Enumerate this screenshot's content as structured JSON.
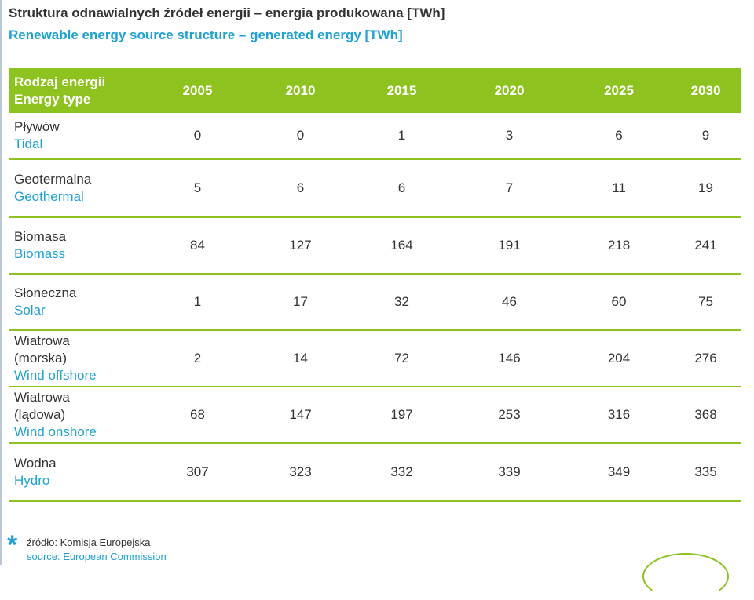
{
  "title_pl": "Struktura odnawialnych źródeł energii – energia produkowana [TWh]",
  "title_en": "Renewable energy source structure – generated energy [TWh]",
  "colors": {
    "header_bg": "#8dc21f",
    "accent_blue": "#1ea1d6"
  },
  "chart_data": {
    "type": "table",
    "header_pl": "Rodzaj energii",
    "header_en": "Energy type",
    "columns": [
      "2005",
      "2010",
      "2015",
      "2020",
      "2025",
      "2030"
    ],
    "rows": [
      {
        "pl": "Pływów",
        "en": "Tidal",
        "values": [
          "0",
          "0",
          "1",
          "3",
          "6",
          "9"
        ]
      },
      {
        "pl": "Geotermalna",
        "en": "Geothermal",
        "values": [
          "5",
          "6",
          "6",
          "7",
          "11",
          "19"
        ]
      },
      {
        "pl": "Biomasa",
        "en": "Biomass",
        "values": [
          "84",
          "127",
          "164",
          "191",
          "218",
          "241"
        ]
      },
      {
        "pl": "Słoneczna",
        "en": "Solar",
        "values": [
          "1",
          "17",
          "32",
          "46",
          "60",
          "75"
        ]
      },
      {
        "pl": "Wiatrowa (morska)",
        "en": "Wind offshore",
        "values": [
          "2",
          "14",
          "72",
          "146",
          "204",
          "276"
        ]
      },
      {
        "pl": "Wiatrowa (lądowa)",
        "en": "Wind onshore",
        "values": [
          "68",
          "147",
          "197",
          "253",
          "316",
          "368"
        ]
      },
      {
        "pl": "Wodna",
        "en": "Hydro",
        "values": [
          "307",
          "323",
          "332",
          "339",
          "349",
          "335"
        ]
      }
    ]
  },
  "footer": {
    "star": "*",
    "source_pl": "źródło: Komisja Europejska",
    "source_en": "source: European Commission"
  }
}
